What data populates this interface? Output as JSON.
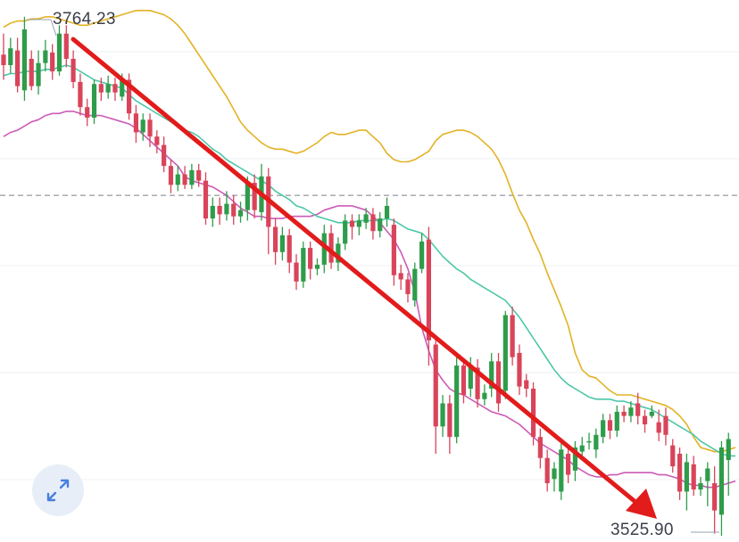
{
  "chart_data": {
    "type": "candlestick",
    "title": "",
    "xlabel": "",
    "ylabel": "",
    "y_range": [
      3518,
      3776
    ],
    "grid": true,
    "max_label": "3764.23",
    "min_label": "3525.90",
    "reference_line": 3683,
    "colors": {
      "up": "#2e9c4a",
      "down": "#d9445a",
      "ma": "#4ec7a8",
      "upper_band": "#e3b224",
      "lower_band": "#cc5bb6",
      "arrow": "#e21b1b",
      "reference_line": "#8a8f99",
      "grid": "#eef0f3"
    },
    "candles": [
      [
        3750,
        3745,
        3760,
        3738
      ],
      [
        3745,
        3753,
        3758,
        3741
      ],
      [
        3752,
        3735,
        3758,
        3732
      ],
      [
        3733,
        3762,
        3768,
        3728
      ],
      [
        3748,
        3735,
        3752,
        3733
      ],
      [
        3735,
        3746,
        3752,
        3731
      ],
      [
        3746,
        3752,
        3757,
        3742
      ],
      [
        3751,
        3742,
        3755,
        3738
      ],
      [
        3742,
        3760,
        3764,
        3740
      ],
      [
        3760,
        3748,
        3764,
        3744
      ],
      [
        3748,
        3737,
        3752,
        3734
      ],
      [
        3737,
        3725,
        3741,
        3721
      ],
      [
        3725,
        3720,
        3729,
        3716
      ],
      [
        3720,
        3736,
        3738,
        3717
      ],
      [
        3736,
        3732,
        3739,
        3728
      ],
      [
        3732,
        3736,
        3740,
        3729
      ],
      [
        3736,
        3732,
        3739,
        3728
      ],
      [
        3730,
        3738,
        3741,
        3728
      ],
      [
        3738,
        3722,
        3741,
        3719
      ],
      [
        3722,
        3713,
        3726,
        3708
      ],
      [
        3713,
        3719,
        3722,
        3709
      ],
      [
        3719,
        3711,
        3722,
        3706
      ],
      [
        3711,
        3707,
        3714,
        3703
      ],
      [
        3707,
        3697,
        3711,
        3694
      ],
      [
        3697,
        3688,
        3700,
        3684
      ],
      [
        3688,
        3693,
        3697,
        3685
      ],
      [
        3693,
        3688,
        3697,
        3686
      ],
      [
        3688,
        3695,
        3698,
        3686
      ],
      [
        3695,
        3690,
        3698,
        3687
      ],
      [
        3690,
        3672,
        3694,
        3669
      ],
      [
        3672,
        3678,
        3682,
        3668
      ],
      [
        3678,
        3674,
        3682,
        3669
      ],
      [
        3674,
        3679,
        3685,
        3671
      ],
      [
        3679,
        3673,
        3683,
        3669
      ],
      [
        3673,
        3676,
        3680,
        3670
      ],
      [
        3676,
        3689,
        3692,
        3671
      ],
      [
        3689,
        3676,
        3693,
        3672
      ],
      [
        3675,
        3692,
        3698,
        3671
      ],
      [
        3692,
        3668,
        3696,
        3655
      ],
      [
        3668,
        3656,
        3672,
        3650
      ],
      [
        3656,
        3664,
        3668,
        3652
      ],
      [
        3664,
        3651,
        3667,
        3646
      ],
      [
        3651,
        3642,
        3655,
        3638
      ],
      [
        3642,
        3658,
        3661,
        3639
      ],
      [
        3658,
        3648,
        3661,
        3643
      ],
      [
        3648,
        3650,
        3653,
        3645
      ],
      [
        3650,
        3665,
        3669,
        3646
      ],
      [
        3665,
        3651,
        3669,
        3648
      ],
      [
        3651,
        3660,
        3663,
        3647
      ],
      [
        3660,
        3671,
        3674,
        3657
      ],
      [
        3671,
        3668,
        3674,
        3662
      ],
      [
        3668,
        3671,
        3674,
        3664
      ],
      [
        3670,
        3674,
        3677,
        3667
      ],
      [
        3674,
        3666,
        3677,
        3662
      ],
      [
        3666,
        3672,
        3675,
        3663
      ],
      [
        3672,
        3678,
        3682,
        3668
      ],
      [
        3669,
        3645,
        3672,
        3640
      ],
      [
        3646,
        3643,
        3650,
        3638
      ],
      [
        3643,
        3636,
        3646,
        3632
      ],
      [
        3633,
        3648,
        3651,
        3630
      ],
      [
        3648,
        3661,
        3665,
        3646
      ],
      [
        3662,
        3614,
        3668,
        3602
      ],
      [
        3612,
        3573,
        3615,
        3560
      ],
      [
        3573,
        3584,
        3588,
        3568
      ],
      [
        3584,
        3568,
        3588,
        3560
      ],
      [
        3568,
        3602,
        3606,
        3565
      ],
      [
        3602,
        3588,
        3605,
        3584
      ],
      [
        3591,
        3602,
        3606,
        3587
      ],
      [
        3601,
        3586,
        3605,
        3582
      ],
      [
        3586,
        3589,
        3593,
        3583
      ],
      [
        3591,
        3604,
        3608,
        3587
      ],
      [
        3604,
        3584,
        3608,
        3580
      ],
      [
        3590,
        3626,
        3628,
        3586
      ],
      [
        3626,
        3606,
        3630,
        3602
      ],
      [
        3608,
        3592,
        3612,
        3588
      ],
      [
        3595,
        3591,
        3598,
        3587
      ],
      [
        3591,
        3568,
        3594,
        3564
      ],
      [
        3568,
        3558,
        3572,
        3553
      ],
      [
        3558,
        3546,
        3562,
        3542
      ],
      [
        3548,
        3553,
        3556,
        3542
      ],
      [
        3542,
        3562,
        3565,
        3538
      ],
      [
        3560,
        3550,
        3563,
        3546
      ],
      [
        3552,
        3563,
        3566,
        3547
      ],
      [
        3561,
        3564,
        3568,
        3558
      ],
      [
        3566,
        3566,
        3570,
        3562
      ],
      [
        3562,
        3569,
        3572,
        3558
      ],
      [
        3568,
        3576,
        3579,
        3565
      ],
      [
        3576,
        3571,
        3579,
        3567
      ],
      [
        3571,
        3580,
        3583,
        3568
      ],
      [
        3580,
        3578,
        3583,
        3575
      ],
      [
        3578,
        3582,
        3585,
        3575
      ],
      [
        3584,
        3578,
        3589,
        3574
      ],
      [
        3578,
        3574,
        3581,
        3570
      ],
      [
        3578,
        3580,
        3583,
        3577
      ],
      [
        3575,
        3570,
        3581,
        3566
      ],
      [
        3578,
        3569,
        3582,
        3564
      ],
      [
        3564,
        3554,
        3567,
        3551
      ],
      [
        3560,
        3542,
        3563,
        3538
      ],
      [
        3542,
        3556,
        3560,
        3533
      ],
      [
        3555,
        3543,
        3559,
        3540
      ],
      [
        3543,
        3546,
        3549,
        3540
      ],
      [
        3547,
        3553,
        3556,
        3535
      ],
      [
        3546,
        3533,
        3554,
        3522
      ],
      [
        3531,
        3563,
        3566,
        3521
      ],
      [
        3557,
        3567,
        3570,
        3540
      ]
    ],
    "ma": [
      3740,
      3741,
      3741,
      3742,
      3742,
      3742,
      3743,
      3743,
      3744,
      3745,
      3744,
      3742,
      3740,
      3738,
      3737,
      3736,
      3735,
      3734,
      3731,
      3728,
      3726,
      3724,
      3722,
      3720,
      3718,
      3716,
      3714,
      3713,
      3711,
      3708,
      3705,
      3703,
      3700,
      3698,
      3696,
      3694,
      3692,
      3690,
      3688,
      3685,
      3683,
      3681,
      3678,
      3677,
      3675,
      3673,
      3672,
      3671,
      3670,
      3670,
      3670,
      3671,
      3671,
      3671,
      3671,
      3672,
      3671,
      3669,
      3667,
      3666,
      3665,
      3662,
      3658,
      3654,
      3651,
      3648,
      3646,
      3643,
      3641,
      3639,
      3637,
      3635,
      3633,
      3629,
      3625,
      3620,
      3615,
      3610,
      3605,
      3600,
      3596,
      3593,
      3591,
      3589,
      3587,
      3586,
      3586,
      3586,
      3585,
      3585,
      3584,
      3583,
      3582,
      3581,
      3579,
      3577,
      3575,
      3573,
      3571,
      3569,
      3566,
      3564,
      3562,
      3560,
      3559,
      3559
    ],
    "upper_band": [
      3763,
      3765,
      3766,
      3766,
      3767,
      3767,
      3768,
      3768,
      3767,
      3766,
      3765,
      3764,
      3764,
      3765,
      3766,
      3767,
      3768,
      3769,
      3770,
      3771,
      3771,
      3771,
      3770,
      3769,
      3767,
      3764,
      3760,
      3755,
      3750,
      3745,
      3740,
      3735,
      3730,
      3724,
      3718,
      3714,
      3711,
      3708,
      3706,
      3705,
      3705,
      3704,
      3703,
      3704,
      3706,
      3708,
      3711,
      3713,
      3712,
      3712,
      3713,
      3714,
      3714,
      3711,
      3708,
      3703,
      3700,
      3699,
      3699,
      3700,
      3702,
      3704,
      3709,
      3712,
      3713,
      3714,
      3714,
      3713,
      3711,
      3708,
      3705,
      3700,
      3693,
      3684,
      3676,
      3670,
      3662,
      3655,
      3646,
      3638,
      3630,
      3621,
      3608,
      3600,
      3597,
      3596,
      3593,
      3590,
      3588,
      3588,
      3588,
      3587,
      3586,
      3585,
      3584,
      3583,
      3581,
      3578,
      3574,
      3568,
      3563,
      3562,
      3561,
      3561,
      3562,
      3563
    ],
    "lower_band": [
      3711,
      3713,
      3714,
      3716,
      3718,
      3719,
      3721,
      3722,
      3722,
      3723,
      3723,
      3722,
      3721,
      3721,
      3721,
      3720,
      3719,
      3718,
      3717,
      3715,
      3712,
      3709,
      3706,
      3703,
      3700,
      3697,
      3692,
      3690,
      3689,
      3688,
      3687,
      3685,
      3683,
      3680,
      3677,
      3675,
      3673,
      3673,
      3672,
      3672,
      3672,
      3673,
      3673,
      3673,
      3673,
      3674,
      3676,
      3677,
      3678,
      3678,
      3678,
      3677,
      3676,
      3673,
      3670,
      3666,
      3662,
      3656,
      3648,
      3637,
      3620,
      3609,
      3600,
      3595,
      3591,
      3589,
      3588,
      3586,
      3584,
      3582,
      3580,
      3579,
      3578,
      3576,
      3574,
      3571,
      3568,
      3565,
      3563,
      3561,
      3559,
      3557,
      3554,
      3552,
      3550,
      3549,
      3549,
      3550,
      3550,
      3551,
      3551,
      3551,
      3551,
      3551,
      3550,
      3550,
      3549,
      3548,
      3546,
      3545,
      3545,
      3544,
      3544,
      3545,
      3546,
      3547
    ]
  },
  "controls": {
    "expand_icon": "expand-arrows-icon"
  }
}
